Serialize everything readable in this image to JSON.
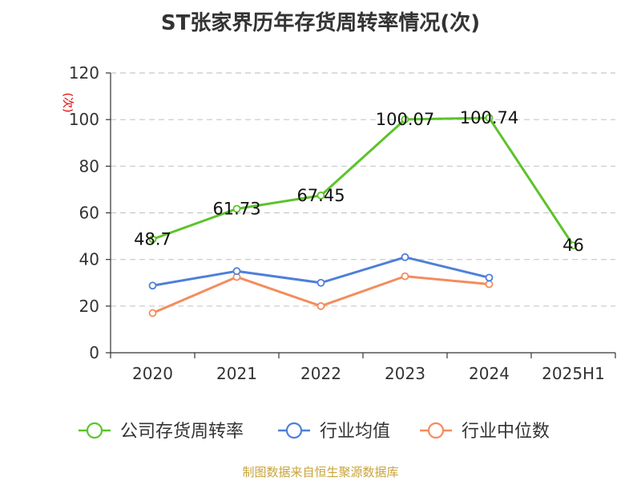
{
  "title": "ST张家界历年存货周转率情况(次)",
  "source": "制图数据来自恒生聚源数据库",
  "chart_data": {
    "type": "line",
    "title": "ST张家界历年存货周转率情况(次)",
    "ylabel": "(次)",
    "xlabel": "",
    "ylim": [
      0,
      120
    ],
    "yticks": [
      "0",
      "20",
      "40",
      "60",
      "80",
      "100",
      "120"
    ],
    "categories": [
      "2020",
      "2021",
      "2022",
      "2023",
      "2024",
      "2025H1"
    ],
    "grid": true,
    "legend_position": "bottom",
    "series": [
      {
        "name": "公司存货周转率",
        "color": "#5dc32b",
        "values": [
          48.7,
          61.73,
          67.45,
          100.07,
          100.74,
          46
        ],
        "labels": [
          "48.7",
          "61.73",
          "67.45",
          "100.07",
          "100.74",
          "46"
        ]
      },
      {
        "name": "行业均值",
        "color": "#4f7fd9",
        "values": [
          28.8,
          35.0,
          30.0,
          41.0,
          32.2,
          null
        ]
      },
      {
        "name": "行业中位数",
        "color": "#f48c5e",
        "values": [
          17.0,
          32.5,
          20.0,
          32.8,
          29.4,
          null
        ]
      }
    ]
  }
}
